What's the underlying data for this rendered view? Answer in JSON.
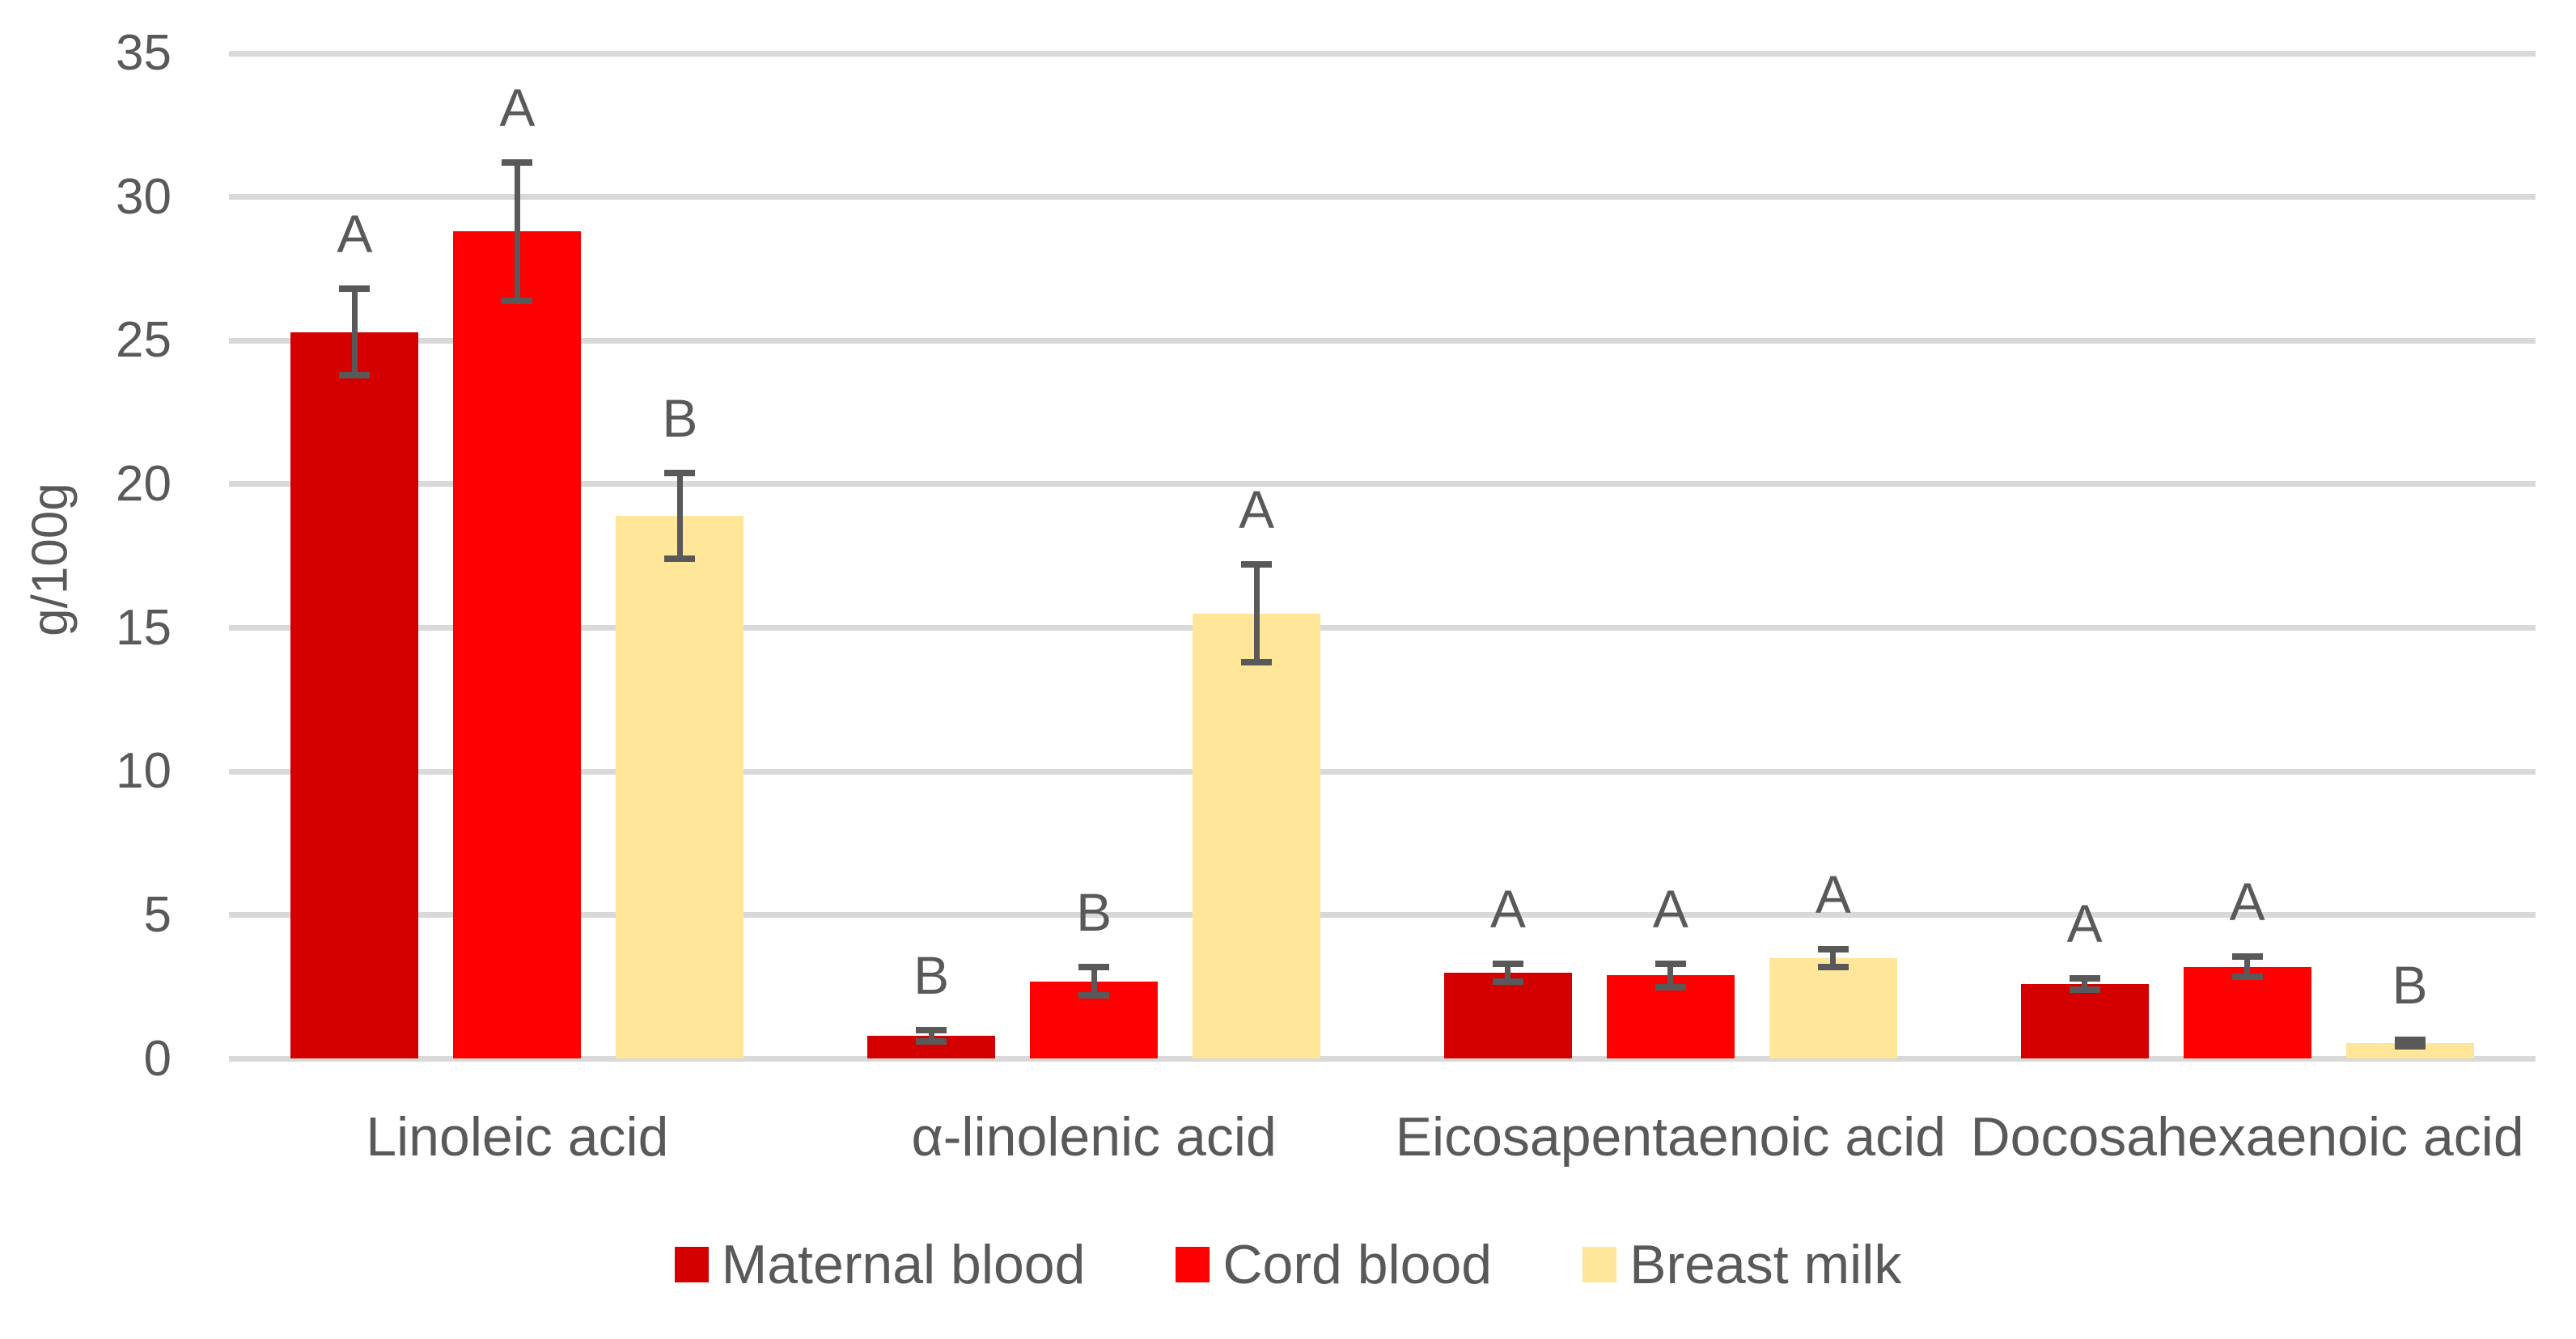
{
  "chart_data": {
    "type": "bar",
    "title": "",
    "xlabel": "",
    "ylabel": "g/100g",
    "ylim": [
      0,
      35
    ],
    "yticks": [
      0,
      5,
      10,
      15,
      20,
      25,
      30,
      35
    ],
    "grid": true,
    "legend_position": "bottom",
    "categories": [
      "Linoleic acid",
      "α-linolenic acid",
      "Eicosapentaenoic acid",
      "Docosahexaenoic acid"
    ],
    "series": [
      {
        "name": "Maternal blood",
        "color": "#D40000",
        "values": [
          25.3,
          0.8,
          3.0,
          2.6
        ],
        "errors": [
          1.5,
          0.2,
          0.3,
          0.2
        ],
        "letters": [
          "A",
          "B",
          "A",
          "A"
        ]
      },
      {
        "name": "Cord blood",
        "color": "#FF0000",
        "values": [
          28.8,
          2.7,
          2.9,
          3.2
        ],
        "errors": [
          2.4,
          0.5,
          0.4,
          0.35
        ],
        "letters": [
          "A",
          "B",
          "A",
          "A"
        ]
      },
      {
        "name": "Breast milk",
        "color": "#FFE699",
        "values": [
          18.9,
          15.5,
          3.5,
          0.55
        ],
        "errors": [
          1.5,
          1.7,
          0.3,
          0.1
        ],
        "letters": [
          "B",
          "A",
          "A",
          "B"
        ]
      }
    ]
  },
  "styles": {
    "text_color": "#595959",
    "gridline_color": "#D9D9D9",
    "error_bar_color": "#595959",
    "background": "#FFFFFF"
  }
}
